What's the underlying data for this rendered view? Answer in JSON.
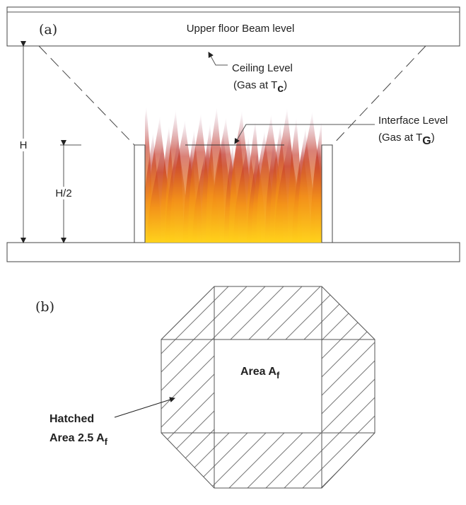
{
  "panel_a": {
    "label": "(a)",
    "beam_label": "Upper floor Beam level",
    "ceiling": {
      "line1": "Ceiling Level",
      "line2": "(Gas at T",
      "sub": "c",
      "close": ")"
    },
    "interface": {
      "line1": "Interface Level",
      "line2": "(Gas at T",
      "sub": "G",
      "close": ")"
    },
    "height_label": "H",
    "half_height_label": "H/2"
  },
  "panel_b": {
    "label": "(b)",
    "area_label": "Area A",
    "area_sub": "f",
    "hatched_line1": "Hatched",
    "hatched_line2": "Area 2.5 A",
    "hatched_sub": "f"
  }
}
